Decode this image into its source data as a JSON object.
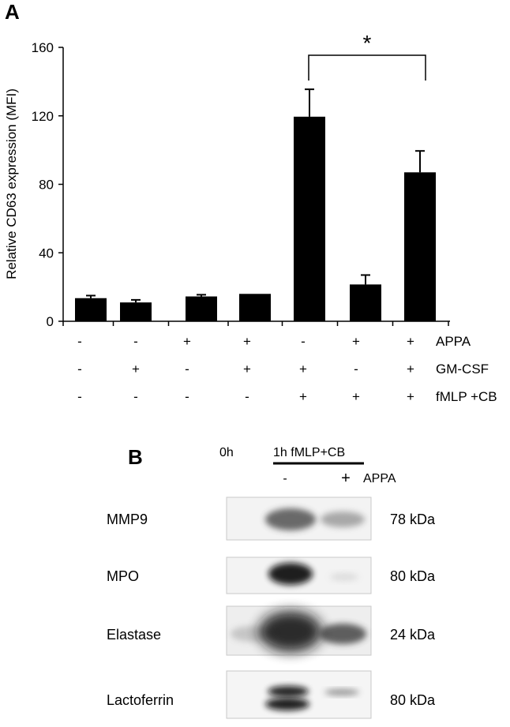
{
  "panels": {
    "a_letter": "A",
    "b_letter": "B"
  },
  "chart_data": {
    "type": "bar",
    "ylabel": "Relative CD63 expression (MFI)",
    "ylim": [
      0,
      160
    ],
    "yticks": [
      0,
      40,
      80,
      120,
      160
    ],
    "series": [
      {
        "values": [
          13.5,
          11,
          14.5,
          16,
          119.5,
          21.5,
          87
        ],
        "errors": [
          1.5,
          1.5,
          1,
          0,
          16,
          5.5,
          12.5
        ]
      }
    ],
    "bar_color": "#000000",
    "condition_table": {
      "rows": [
        {
          "label": "APPA",
          "signs": [
            "-",
            "-",
            "+",
            "+",
            "-",
            "+",
            "+"
          ]
        },
        {
          "label": "GM-CSF",
          "signs": [
            "-",
            "+",
            "-",
            "+",
            "+",
            "-",
            "+"
          ]
        },
        {
          "label": "fMLP +CB",
          "signs": [
            "-",
            "-",
            "-",
            "-",
            "+",
            "+",
            "+"
          ]
        }
      ]
    },
    "significance": {
      "from_bar": 5,
      "to_bar": 7,
      "label": "*"
    }
  },
  "blot": {
    "header_0h": "0h",
    "header_treatment": "1h fMLP+CB",
    "lane_minus": "-",
    "lane_plus": "+",
    "appa_label": "APPA",
    "rows": [
      {
        "name": "MMP9",
        "kda": "78 kDa"
      },
      {
        "name": "MPO",
        "kda": "80 kDa"
      },
      {
        "name": "Elastase",
        "kda": "24 kDa"
      },
      {
        "name": "Lactoferrin",
        "kda": "80 kDa"
      }
    ]
  }
}
